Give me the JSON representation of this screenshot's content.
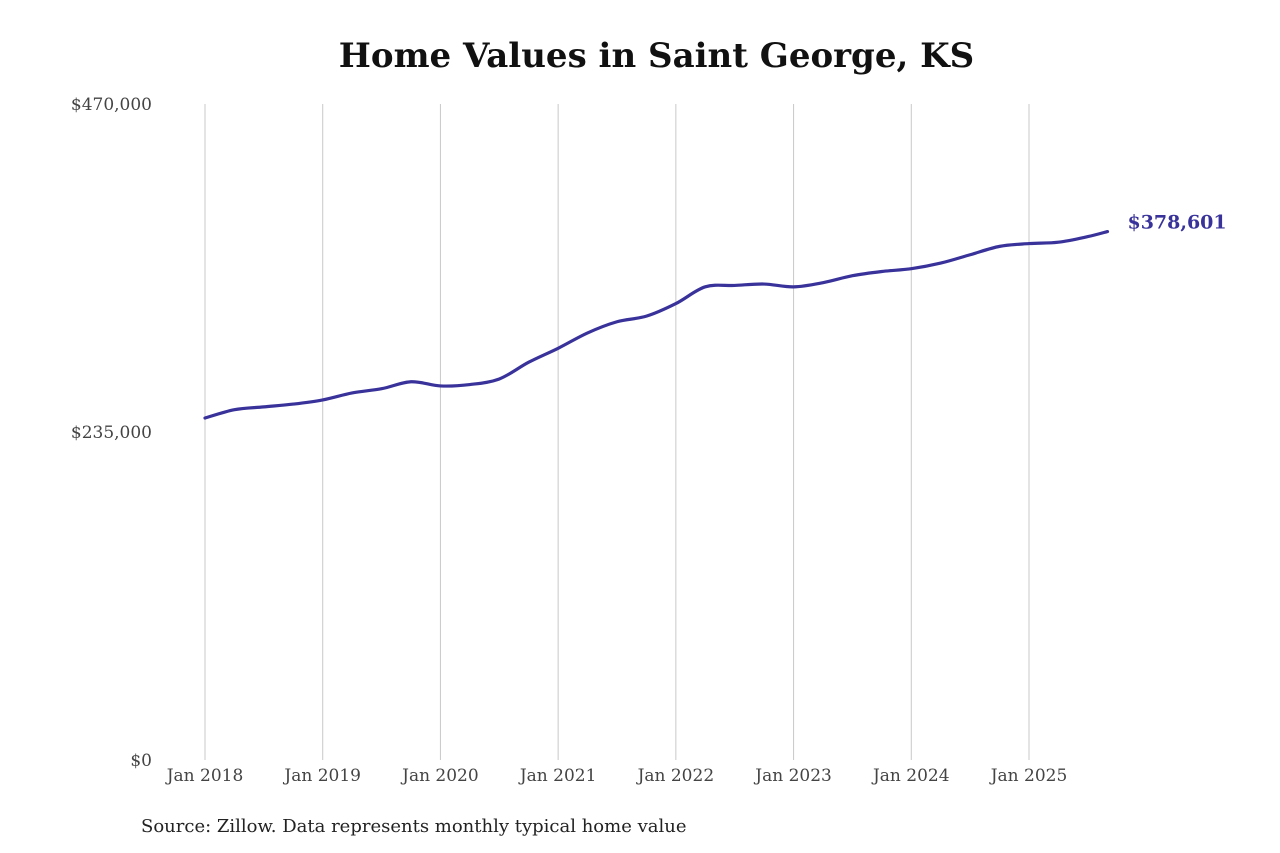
{
  "chart_data": {
    "type": "line",
    "title": "Home Values in Saint George, KS",
    "xlabel": "",
    "ylabel": "",
    "ylim": [
      0,
      470000
    ],
    "y_ticks": [
      {
        "value": 0,
        "label": "$0"
      },
      {
        "value": 235000,
        "label": "$235,000"
      },
      {
        "value": 470000,
        "label": "$470,000"
      }
    ],
    "x_ticks": [
      {
        "value": "2018-01",
        "label": "Jan 2018"
      },
      {
        "value": "2019-01",
        "label": "Jan 2019"
      },
      {
        "value": "2020-01",
        "label": "Jan 2020"
      },
      {
        "value": "2021-01",
        "label": "Jan 2021"
      },
      {
        "value": "2022-01",
        "label": "Jan 2022"
      },
      {
        "value": "2023-01",
        "label": "Jan 2023"
      },
      {
        "value": "2024-01",
        "label": "Jan 2024"
      },
      {
        "value": "2025-01",
        "label": "Jan 2025"
      }
    ],
    "grid": {
      "vertical": true,
      "horizontal": false
    },
    "line_color": "#38329a",
    "series": [
      {
        "x": [
          "2018-01",
          "2018-04",
          "2018-07",
          "2018-10",
          "2019-01",
          "2019-04",
          "2019-07",
          "2019-10",
          "2020-01",
          "2020-04",
          "2020-07",
          "2020-10",
          "2021-01",
          "2021-04",
          "2021-07",
          "2021-10",
          "2022-01",
          "2022-04",
          "2022-07",
          "2022-10",
          "2023-01",
          "2023-04",
          "2023-07",
          "2023-10",
          "2024-01",
          "2024-04",
          "2024-07",
          "2024-10",
          "2025-01",
          "2025-04",
          "2025-07",
          "2025-09"
        ],
        "values": [
          245000,
          251000,
          253000,
          255000,
          258000,
          263000,
          266000,
          271000,
          268000,
          269000,
          273000,
          285000,
          295000,
          306000,
          314000,
          318000,
          327000,
          339000,
          340000,
          341000,
          339000,
          342000,
          347000,
          350000,
          352000,
          356000,
          362000,
          368000,
          370000,
          371000,
          375000,
          378601
        ]
      }
    ],
    "end_label": "$378,601"
  },
  "source_note": "Source: Zillow. Data represents monthly typical home value"
}
